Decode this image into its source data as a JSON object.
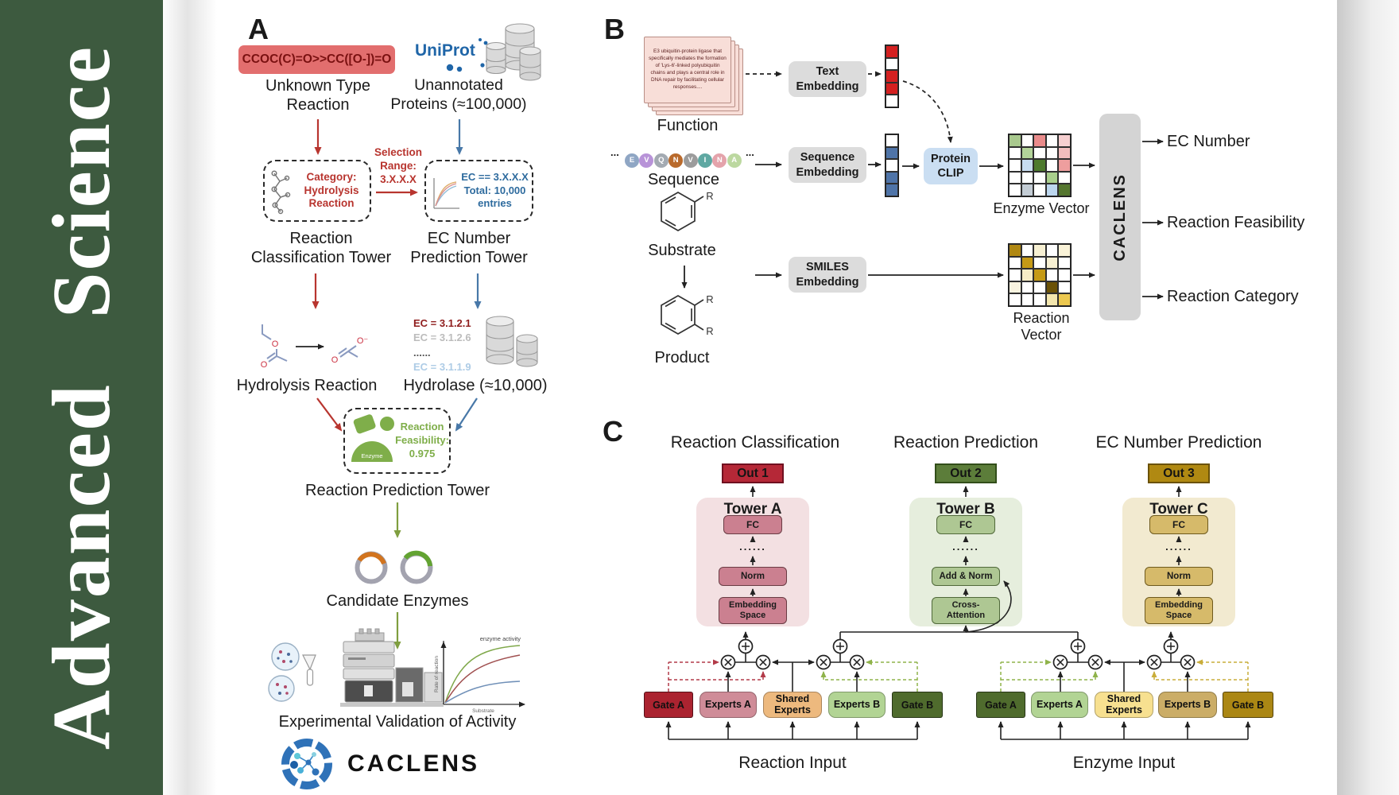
{
  "banner": {
    "journal": "Advanced Science"
  },
  "panel_a": {
    "label": "A",
    "smiles": "CCOC(C)=O>>CC([O-])=O",
    "unknown_type": "Unknown Type\nReaction",
    "uniprot": "UniProt",
    "unannotated": "Unannotated\nProteins (≈100,000)",
    "selection": "Selection\nRange:\n3.X.X.X",
    "category_box": "Category:\nHydrolysis\nReaction",
    "ec_box": "EC == 3.X.X.X\nTotal: 10,000\nentries",
    "classification_tower": "Reaction\nClassification Tower",
    "ec_tower": "EC Number\nPrediction Tower",
    "ec_candidates": [
      {
        "text": "EC = 3.1.2.1",
        "color": "#8f1d1d",
        "bold": true
      },
      {
        "text": "EC = 3.1.2.6",
        "color": "#bcbcbc",
        "bold": false
      },
      {
        "text": "......",
        "color": "#555555",
        "bold": false
      },
      {
        "text": "EC = 3.1.1.9",
        "color": "#aecce6",
        "bold": false
      }
    ],
    "hydrolysis": "Hydrolysis Reaction",
    "hydrolase": "Hydrolase (≈10,000)",
    "enzyme_badge": "Enzyme",
    "feasibility": "Reaction\nFeasibility:\n0.975",
    "prediction_tower": "Reaction Prediction Tower",
    "candidates": "Candidate Enzymes",
    "validation": "Experimental Validation of Activity",
    "wordmark": "CACLENS",
    "molecules": {
      "o": "O",
      "o_minus": "O⁻"
    },
    "activity_plot": {
      "annotation": "enzyme activity",
      "ylabel": "Rate of reaction",
      "xlabel": "Substrate"
    }
  },
  "panel_b": {
    "label": "B",
    "function_card": "E3 ubiquitin-protein ligase that specifically mediates the formation of 'Lys-6'-linked polyubiquitin chains and plays a central role in DNA repair by facilitating cellular responses....",
    "function_label": "Function",
    "ellipsis": "...",
    "sequence_label": "Sequence",
    "sequence_residues": [
      {
        "letter": "E",
        "color": "#8fa6c4"
      },
      {
        "letter": "V",
        "color": "#b893d8"
      },
      {
        "letter": "Q",
        "color": "#a3aab2"
      },
      {
        "letter": "N",
        "color": "#b96a2c"
      },
      {
        "letter": "V",
        "color": "#9c9c9c"
      },
      {
        "letter": "I",
        "color": "#5fa8a2"
      },
      {
        "letter": "N",
        "color": "#e4a3ab"
      },
      {
        "letter": "A",
        "color": "#bcd8a0"
      }
    ],
    "text_embedding": "Text\nEmbedding",
    "sequence_embedding": "Sequence\nEmbedding",
    "smiles_embedding": "SMILES\nEmbedding",
    "protein_clip": "Protein\nCLIP",
    "substrate": "Substrate",
    "product": "Product",
    "r_group": "R",
    "text_vector": [
      "#d42020",
      "#ffffff",
      "#d42020",
      "#d42020",
      "#ffffff"
    ],
    "sequence_vector": [
      "#ffffff",
      "#4f74a8",
      "#ffffff",
      "#4f74a8",
      "#4f74a8"
    ],
    "enzyme_vector_label": "Enzyme Vector",
    "reaction_vector_label": "Reaction Vector",
    "enzyme_matrix": [
      [
        "#a9c98e",
        "#ffffff",
        "#e98b8b",
        "#ffffff",
        "#f6cfd0"
      ],
      [
        "#ffffff",
        "#b3d49a",
        "#ffffff",
        "#ffffff",
        "#f2bdbd"
      ],
      [
        "#ffffff",
        "#c7dcf0",
        "#4e7a2e",
        "#ffffff",
        "#ee9e9e"
      ],
      [
        "#ffffff",
        "#ffffff",
        "#ffffff",
        "#a9cf8c",
        "#ffffff"
      ],
      [
        "#ffffff",
        "#c3ccd4",
        "#ffffff",
        "#bcd6ee",
        "#55762f"
      ]
    ],
    "reaction_matrix": [
      [
        "#b08812",
        "#ffffff",
        "#f7f0d2",
        "#ffffff",
        "#faf3d8"
      ],
      [
        "#ffffff",
        "#c59a16",
        "#ffffff",
        "#f7f0d2",
        "#ffffff"
      ],
      [
        "#ffffff",
        "#f7ecc6",
        "#c59a16",
        "#ffffff",
        "#ffffff"
      ],
      [
        "#f9f4e0",
        "#ffffff",
        "#ffffff",
        "#6b5206",
        "#ffffff"
      ],
      [
        "#ffffff",
        "#ffffff",
        "#ffffff",
        "#f3e6ae",
        "#ecc84f"
      ]
    ],
    "caclens_bar": "CACLENS",
    "outputs": [
      "EC Number",
      "Reaction Feasibility",
      "Reaction Category"
    ]
  },
  "panel_c": {
    "label": "C",
    "headers": [
      "Reaction Classification",
      "Reaction Prediction",
      "EC Number Prediction"
    ],
    "outs": [
      "Out 1",
      "Out 2",
      "Out 3"
    ],
    "dots": "......",
    "towers": [
      {
        "title": "Tower A",
        "fc": "FC",
        "mid": "Norm",
        "bottom": "Embedding\nSpace"
      },
      {
        "title": "Tower B",
        "fc": "FC",
        "mid": "Add & Norm",
        "bottom": "Cross-\nAttention"
      },
      {
        "title": "Tower C",
        "fc": "FC",
        "mid": "Norm",
        "bottom": "Embedding\nSpace"
      }
    ],
    "moe": {
      "gate_a": "Gate A",
      "experts_a": "Experts A",
      "shared": "Shared\nExperts",
      "experts_b": "Experts B",
      "gate_b": "Gate B"
    },
    "inputs": [
      "Reaction Input",
      "Enzyme Input"
    ]
  },
  "palette": {
    "banner_green": "#3d5a3f",
    "smiles_red_bg": "#e26e6e",
    "smiles_red_text": "#7a1111",
    "arrow_red": "#b8352f",
    "arrow_blue": "#4878a8",
    "arrow_green": "#7f9e3f",
    "uniprot_blue": "#2066a8",
    "clip_blue": "#cadef2",
    "embed_gray": "#dcdcdc",
    "out1": "#b52837",
    "out2": "#5c7d3a",
    "out3": "#b08912",
    "tower_a_bg": "#f3e0e2",
    "tower_a_box": "#cb8090",
    "tower_b_bg": "#e6eedd",
    "tower_b_box": "#aec793",
    "tower_c_bg": "#f2ead0",
    "tower_c_box": "#d6ba6a",
    "gate_a_left": "#ab2330",
    "experts_a_left": "#cf8c98",
    "shared_left": "#edb97e",
    "experts_b_left": "#b2d494",
    "gate_b_left": "#4f6b2d",
    "gate_a_right": "#4f6b2d",
    "experts_a_right": "#b2d494",
    "shared_right": "#f7e090",
    "experts_b_right": "#cbad67",
    "gate_b_right": "#ab8714",
    "enzyme_green": "#7fae4a"
  }
}
